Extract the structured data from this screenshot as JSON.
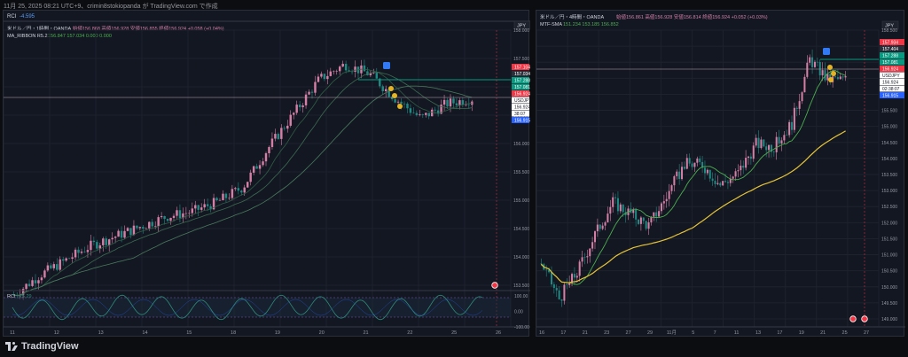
{
  "caption": "11月 25, 2025 08:21 UTC+9、crimin8stokiopanda が TradingView.com で作成",
  "footer": {
    "brand": "TradingView"
  },
  "colors": {
    "bg": "#131722",
    "grid": "#1e222d",
    "up": "#d67fa6",
    "down": "#1f8a84",
    "label_red": "#f23645",
    "label_green": "#089981",
    "label_blue": "#2962ff",
    "ribbon": "#3d6b52",
    "sma_green": "#4caf50",
    "sma_yellow": "#e6c437",
    "rci": "#2e8b7a",
    "price_line": "#c2a4b3"
  },
  "left_chart": {
    "indicator_title": "RCI",
    "indicator_value": "-4.595",
    "symbol_line": "米ドル／円・1時間・OANDA",
    "ohlc": "始値156.868 高値156.928 安値156.855 終値156.924 +0.058 (+0.04%)",
    "ribbon_legend": "MA_RIBBON R5.2",
    "ribbon_values": "156.847  157.034  0.000  0.000",
    "currency": "JPY",
    "price_labels": [
      "158.000",
      "157.500",
      "157.000",
      "156.500",
      "156.000",
      "155.500",
      "155.000",
      "154.500",
      "154.000",
      "153.500"
    ],
    "tag_labels": [
      {
        "text": "157.104",
        "color": "red"
      },
      {
        "text": "157.034",
        "color": "dark"
      },
      {
        "text": "157.288",
        "color": "green"
      },
      {
        "text": "157.081",
        "color": "green"
      },
      {
        "text": "156.924",
        "color": "red"
      },
      {
        "text": "USDJPY",
        "color": "white"
      },
      {
        "text": "156.924",
        "color": "white"
      },
      {
        "text": "38:07",
        "color": "white"
      },
      {
        "text": "156.915",
        "color": "blue"
      }
    ],
    "sub_title": "RCI",
    "sub_value": "-25.29",
    "sub_labels": [
      "100.00",
      "0.00",
      "-100.00"
    ],
    "x_labels": [
      "11",
      "12",
      "13",
      "14",
      "15",
      "18",
      "19",
      "20",
      "21",
      "22",
      "25",
      "26"
    ]
  },
  "right_chart": {
    "symbol_line": "米ドル／円・4時間・OANDA",
    "ohlc": "始値156.861 高値156.928 安値156.814 終値156.924 +0.052 (+0.03%)",
    "legend": "MTF-SMA",
    "legend_values": "151.234  153.185  156.852",
    "currency": "JPY",
    "price_labels": [
      "158.500",
      "158.000",
      "157.000",
      "156.500",
      "156.000",
      "155.500",
      "155.000",
      "154.500",
      "154.000",
      "153.500",
      "153.000",
      "152.500",
      "152.000",
      "151.500",
      "151.000",
      "150.500",
      "150.000",
      "149.500",
      "149.000"
    ],
    "tag_labels": [
      {
        "text": "157.934",
        "color": "red"
      },
      {
        "text": "157.404",
        "color": "dark"
      },
      {
        "text": "157.288",
        "color": "green"
      },
      {
        "text": "157.081",
        "color": "green"
      },
      {
        "text": "156.924",
        "color": "red"
      },
      {
        "text": "USDJPY",
        "color": "white"
      },
      {
        "text": "156.924",
        "color": "white"
      },
      {
        "text": "02:38:07",
        "color": "white"
      },
      {
        "text": "156.915",
        "color": "blue"
      }
    ],
    "x_labels": [
      "16",
      "17",
      "21",
      "23",
      "27",
      "29",
      "11月",
      "5",
      "7",
      "11",
      "13",
      "17",
      "19",
      "21",
      "25",
      "27"
    ]
  }
}
